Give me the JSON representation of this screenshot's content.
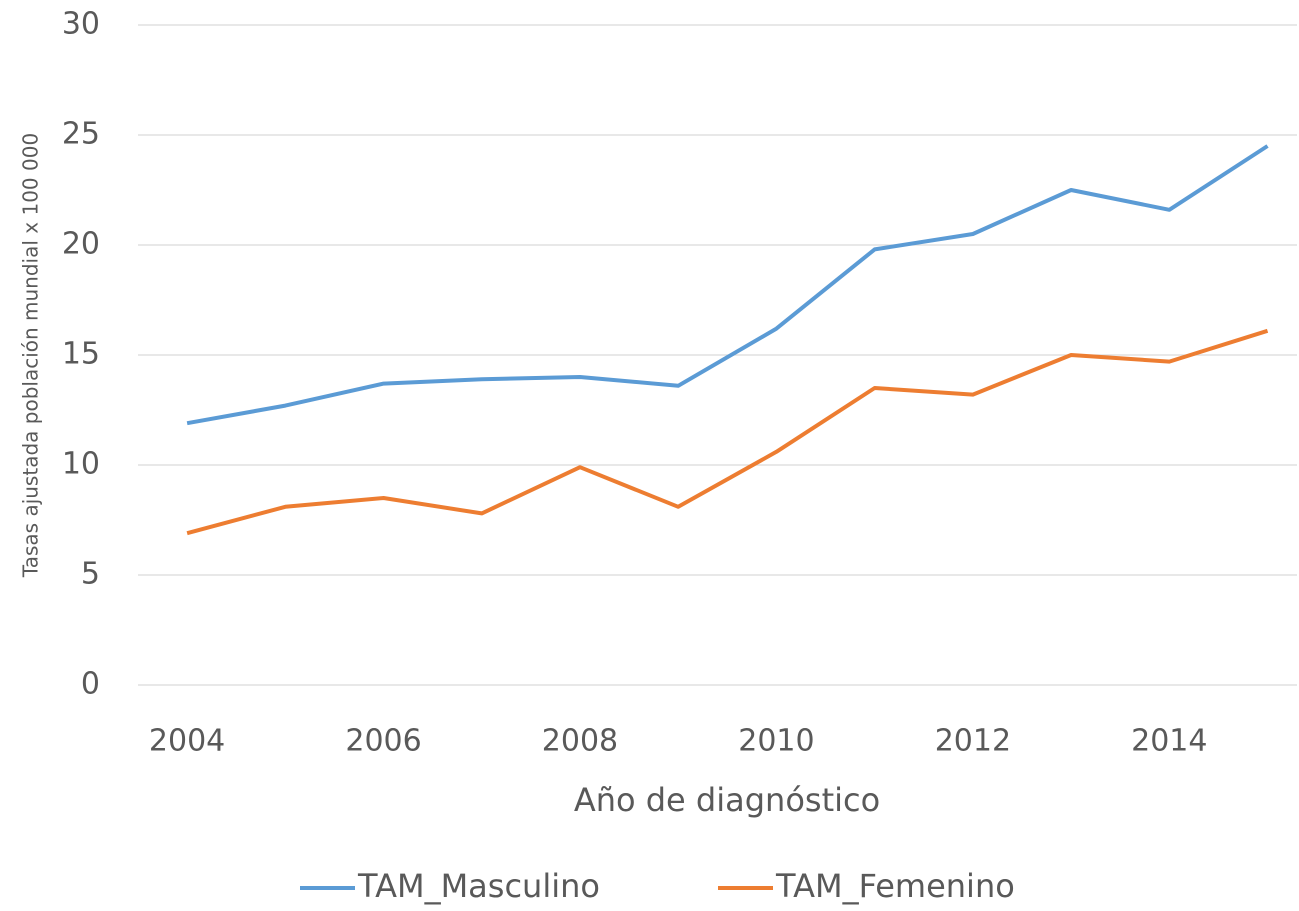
{
  "chart_data": {
    "type": "line",
    "x_label": "Año de diagnóstico",
    "y_label": "Tasas ajustada población mundial x 100 000",
    "x": [
      2004,
      2005,
      2006,
      2007,
      2008,
      2009,
      2010,
      2011,
      2012,
      2013,
      2014,
      2015
    ],
    "series": [
      {
        "name": "TAM_Masculino",
        "color": "#5b9bd5",
        "values": [
          11.9,
          12.7,
          13.7,
          13.9,
          14.0,
          13.6,
          16.2,
          19.8,
          20.5,
          22.5,
          21.6,
          24.5
        ]
      },
      {
        "name": "TAM_Femenino",
        "color": "#ed7d31",
        "values": [
          6.9,
          8.1,
          8.5,
          7.8,
          9.9,
          8.1,
          10.6,
          13.5,
          13.2,
          15.0,
          14.7,
          16.1
        ]
      }
    ],
    "xlim": [
      2003.5,
      2015.3
    ],
    "xticks": [
      2004,
      2006,
      2008,
      2010,
      2012,
      2014
    ],
    "ylim": [
      0,
      30
    ],
    "yticks": [
      0,
      5,
      10,
      15,
      20,
      25,
      30
    ],
    "grid": true,
    "legend": "bottom"
  }
}
